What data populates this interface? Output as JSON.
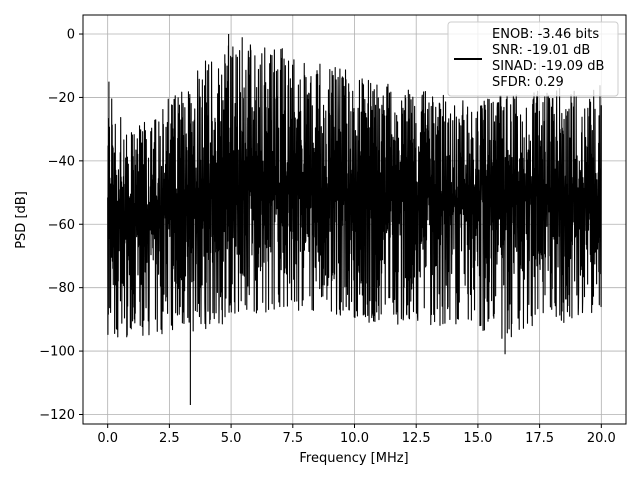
{
  "chart_data": {
    "type": "line",
    "title": "",
    "xlabel": "Frequency [MHz]",
    "ylabel": "PSD [dB]",
    "xlim": [
      -1.0,
      21.0
    ],
    "ylim": [
      -123,
      6
    ],
    "grid": true,
    "legend_placement": "top-right",
    "x_ticks": [
      0.0,
      2.5,
      5.0,
      7.5,
      10.0,
      12.5,
      15.0,
      17.5,
      20.0
    ],
    "x_tick_labels": [
      "0.0",
      "2.5",
      "5.0",
      "7.5",
      "10.0",
      "12.5",
      "15.0",
      "17.5",
      "20.0"
    ],
    "y_ticks": [
      0,
      -20,
      -40,
      -60,
      -80,
      -100,
      -120
    ],
    "y_tick_labels": [
      "0",
      "−20",
      "−40",
      "−60",
      "−80",
      "−100",
      "−120"
    ],
    "legend_lines": [
      "ENOB: -3.46 bits",
      "SNR: -19.01 dB",
      "SINAD: -19.09 dB",
      "SFDR: 0.29"
    ],
    "series": [
      {
        "color": "#000000",
        "x_start": 0.0,
        "x_end": 20.0,
        "envelope_x": [
          0,
          1,
          2,
          3,
          4,
          5,
          6,
          7,
          8,
          9,
          10,
          11,
          12,
          13,
          14,
          15,
          16,
          17,
          18,
          19,
          20
        ],
        "envelope_max": [
          -15,
          -30,
          -25,
          -15,
          -8,
          0,
          -3,
          -4,
          -8,
          -10,
          -12,
          -15,
          -17,
          -18,
          -20,
          -22,
          -18,
          -18,
          -17,
          -17,
          -16
        ],
        "envelope_mean": [
          -58,
          -57,
          -55,
          -53,
          -51,
          -49,
          -49,
          -49,
          -50,
          -50,
          -51,
          -51,
          -51,
          -51,
          -52,
          -52,
          -51,
          -51,
          -51,
          -51,
          -52
        ],
        "envelope_min": [
          -95,
          -97,
          -95,
          -93,
          -95,
          -90,
          -88,
          -88,
          -88,
          -90,
          -90,
          -92,
          -92,
          -92,
          -92,
          -93,
          -98,
          -93,
          -92,
          -90,
          -88
        ],
        "spikes": [
          {
            "x": 3.35,
            "y": -117
          },
          {
            "x": 16.1,
            "y": -101
          },
          {
            "x": 4.9,
            "y": 0
          },
          {
            "x": 5.45,
            "y": -1
          },
          {
            "x": 0.05,
            "y": -15
          }
        ]
      }
    ]
  },
  "colors": {
    "line": "#000000",
    "grid": "#b0b0b0",
    "axes": "#000000",
    "background": "#ffffff"
  }
}
